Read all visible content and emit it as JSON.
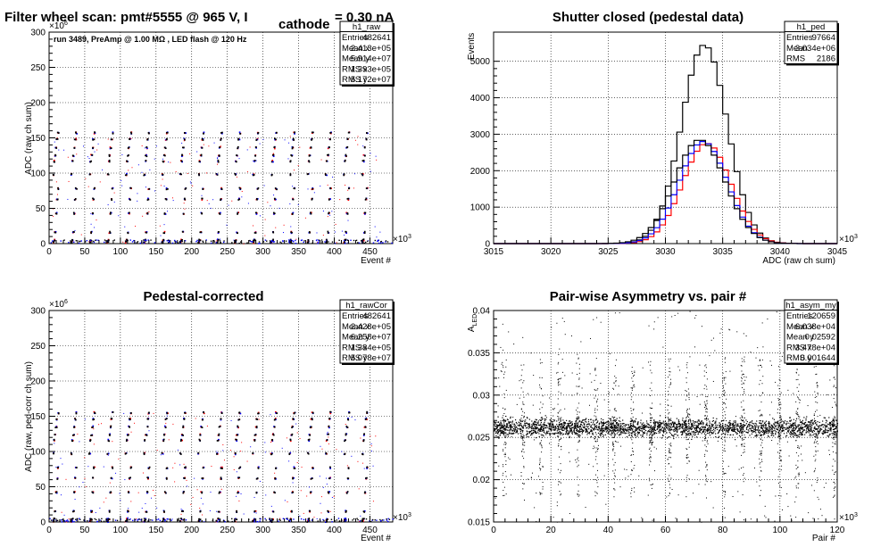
{
  "panels": [
    {
      "title": "Filter wheel scan: pmt#5555 @   965 V, I",
      "title_sub": "cathode",
      "title_end": " = 0.30 nA",
      "ylabel": "ADC (raw ch sum)",
      "xlabel": "Event #",
      "y_exp": "×10",
      "y_exp_pow": "6",
      "x_exp": "×10",
      "x_exp_pow": "3",
      "annotation": "run 3489, PreAmp @ 1.00 MΩ , LED flash @  120 Hz",
      "stats": {
        "name": "h1_raw",
        "rows": [
          [
            "Entries",
            "482641"
          ],
          [
            "Mean x",
            "2.413e+05"
          ],
          [
            "Mean y",
            "5.914e+07"
          ],
          [
            "RMS x",
            "1.393e+05"
          ],
          [
            "RMS y",
            "5.172e+07"
          ]
        ]
      }
    },
    {
      "title": "Shutter closed (pedestal data)",
      "ylabel": "Events",
      "xlabel": "ADC (raw ch sum)",
      "x_exp": "×10",
      "x_exp_pow": "3",
      "stats": {
        "name": "h1_ped",
        "rows": [
          [
            "Entries",
            "97664"
          ],
          [
            "Mean",
            "3.034e+06"
          ],
          [
            "RMS",
            "2186"
          ]
        ]
      }
    },
    {
      "title": "Pedestal-corrected",
      "ylabel": "ADC (raw, ped-corr ch sum)",
      "xlabel": "Event #",
      "y_exp": "×10",
      "y_exp_pow": "6",
      "x_exp": "×10",
      "x_exp_pow": "3",
      "stats": {
        "name": "h1_rawCor",
        "rows": [
          [
            "Entries",
            "482641"
          ],
          [
            "Mean x",
            "2.428e+05"
          ],
          [
            "Mean y",
            "6.258e+07"
          ],
          [
            "RMS x",
            "1.384e+05"
          ],
          [
            "RMS y",
            "5.078e+07"
          ]
        ]
      }
    },
    {
      "title": "Pair-wise Asymmetry vs. pair #",
      "ylabel": "A",
      "ylabel_sub": "LED",
      "xlabel": "Pair #",
      "x_exp": "×10",
      "x_exp_pow": "3",
      "stats": {
        "name": "h1_asym_my",
        "rows": [
          [
            "Entries",
            "120659"
          ],
          [
            "Mean x",
            "6.038e+04"
          ],
          [
            "Mean y",
            "0.02592"
          ],
          [
            "RMS x",
            "3.478e+04"
          ],
          [
            "RMS y",
            "0.001644"
          ]
        ]
      }
    }
  ],
  "chart_data": [
    {
      "type": "scatter",
      "title": "Filter wheel scan: pmt#5555 @   965 V, I cathode = 0.30 nA",
      "xlabel": "Event # (×10^3)",
      "ylabel": "ADC (raw ch sum) (×10^6)",
      "xlim": [
        0,
        482
      ],
      "ylim": [
        0,
        300
      ],
      "xticks": [
        0,
        50,
        100,
        150,
        200,
        250,
        300,
        350,
        400,
        450
      ],
      "yticks": [
        0,
        50,
        100,
        150,
        200,
        250,
        300
      ],
      "grid": true,
      "period": 25.5,
      "levels": [
        2,
        5,
        16,
        43,
        63,
        78,
        98,
        117,
        125,
        136,
        148,
        157
      ],
      "colors": {
        "red": "#ff0000",
        "blue": "#0000ff",
        "black": "#000000"
      }
    },
    {
      "type": "line",
      "title": "Shutter closed (pedestal data)",
      "xlabel": "ADC (raw ch sum) (×10^3)",
      "ylabel": "Events",
      "xlim": [
        3015,
        3045
      ],
      "ylim": [
        0,
        5800
      ],
      "xticks": [
        3015,
        3020,
        3025,
        3030,
        3035,
        3040,
        3045
      ],
      "yticks": [
        0,
        1000,
        2000,
        3000,
        4000,
        5000
      ],
      "grid": true,
      "series": [
        {
          "color": "#000000",
          "peak": 5450,
          "mean": 3033.4,
          "sigma": 2.0
        },
        {
          "color": "#ff0000",
          "peak": 2750,
          "mean": 3033.6,
          "sigma": 2.1
        },
        {
          "color": "#0000ff",
          "peak": 2800,
          "mean": 3033.3,
          "sigma": 2.1
        },
        {
          "color": "#000000",
          "peak": 2850,
          "mean": 3033.0,
          "sigma": 2.2
        }
      ]
    },
    {
      "type": "scatter",
      "title": "Pedestal-corrected",
      "xlabel": "Event # (×10^3)",
      "ylabel": "ADC (raw, ped-corr ch sum) (×10^6)",
      "xlim": [
        0,
        482
      ],
      "ylim": [
        0,
        300
      ],
      "xticks": [
        0,
        50,
        100,
        150,
        200,
        250,
        300,
        350,
        400,
        450
      ],
      "yticks": [
        0,
        50,
        100,
        150,
        200,
        250,
        300
      ],
      "grid": true,
      "period": 25.5,
      "levels": [
        1,
        4,
        15,
        42,
        62,
        77,
        97,
        116,
        124,
        135,
        146,
        155
      ]
    },
    {
      "type": "scatter",
      "title": "Pair-wise Asymmetry vs. pair #",
      "xlabel": "Pair # (×10^3)",
      "ylabel": "A LED",
      "xlim": [
        0,
        120
      ],
      "ylim": [
        0.015,
        0.04
      ],
      "xticks": [
        0,
        20,
        40,
        60,
        80,
        100,
        120
      ],
      "yticks": [
        0.015,
        0.02,
        0.025,
        0.03,
        0.035,
        0.04
      ],
      "grid": true,
      "band_center": 0.0262,
      "band_halfwidth": 0.0009,
      "spike_period": 6.4
    }
  ]
}
